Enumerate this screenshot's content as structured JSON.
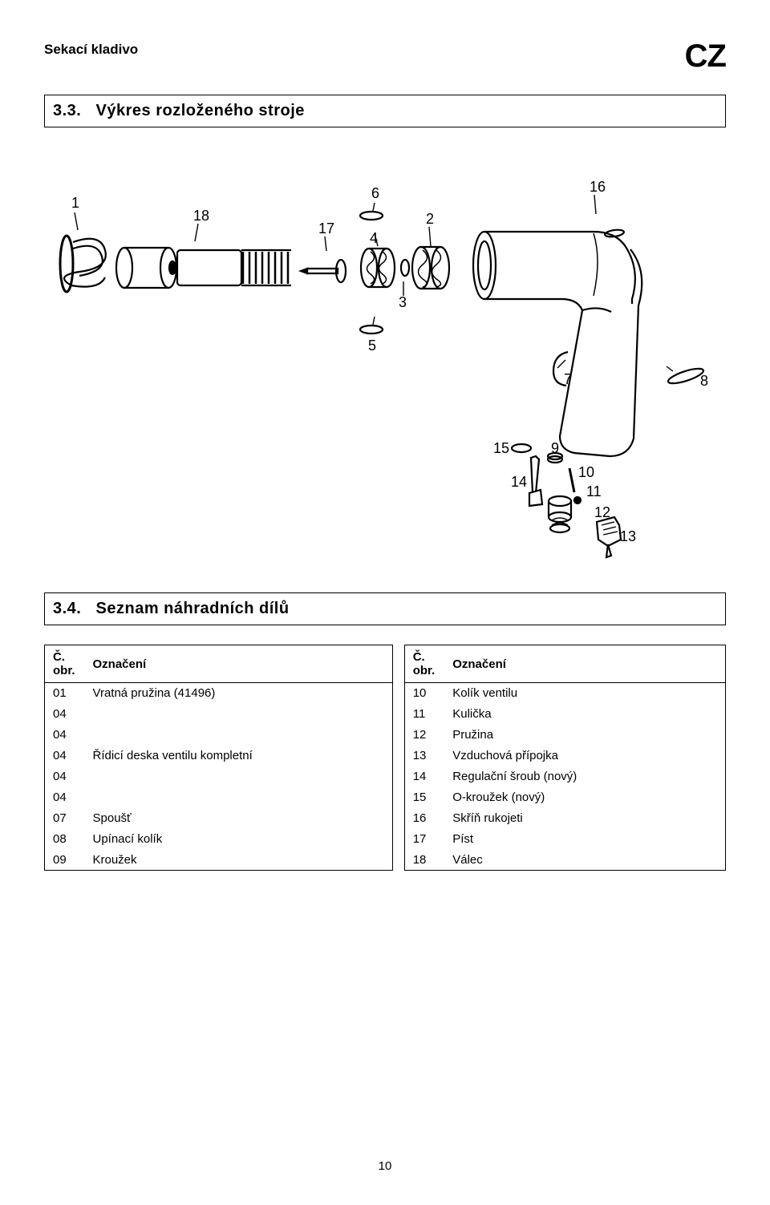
{
  "header": {
    "title": "Sekací kladivo",
    "lang": "CZ"
  },
  "section1": {
    "num": "3.3.",
    "label": "Výkres rozloženého stroje"
  },
  "section2": {
    "num": "3.4.",
    "label": "Seznam náhradních dílů"
  },
  "tableHeaders": {
    "colNum": "Č. obr.",
    "colDesc": "Označení"
  },
  "partsLeft": [
    {
      "n": "01",
      "d": "Vratná pružina (41496)"
    },
    {
      "n": "04",
      "d": ""
    },
    {
      "n": "04",
      "d": ""
    },
    {
      "n": "04",
      "d": "Řídicí deska ventilu kompletní"
    },
    {
      "n": "04",
      "d": ""
    },
    {
      "n": "04",
      "d": ""
    },
    {
      "n": "07",
      "d": "Spoušť"
    },
    {
      "n": "08",
      "d": "Upínací kolík"
    },
    {
      "n": "09",
      "d": "Kroužek"
    }
  ],
  "partsRight": [
    {
      "n": "10",
      "d": "Kolík ventilu"
    },
    {
      "n": "11",
      "d": "Kulička"
    },
    {
      "n": "12",
      "d": "Pružina"
    },
    {
      "n": "13",
      "d": "Vzduchová přípojka"
    },
    {
      "n": "14",
      "d": "Regulační šroub (nový)"
    },
    {
      "n": "15",
      "d": "O-kroužek (nový)"
    },
    {
      "n": "16",
      "d": "Skříň rukojeti"
    },
    {
      "n": "17",
      "d": "Píst"
    },
    {
      "n": "18",
      "d": "Válec"
    }
  ],
  "diagram": {
    "labels": [
      "1",
      "2",
      "3",
      "4",
      "5",
      "6",
      "7",
      "8",
      "9",
      "10",
      "11",
      "12",
      "13",
      "14",
      "15",
      "16",
      "17",
      "18"
    ]
  },
  "pageNumber": "10"
}
